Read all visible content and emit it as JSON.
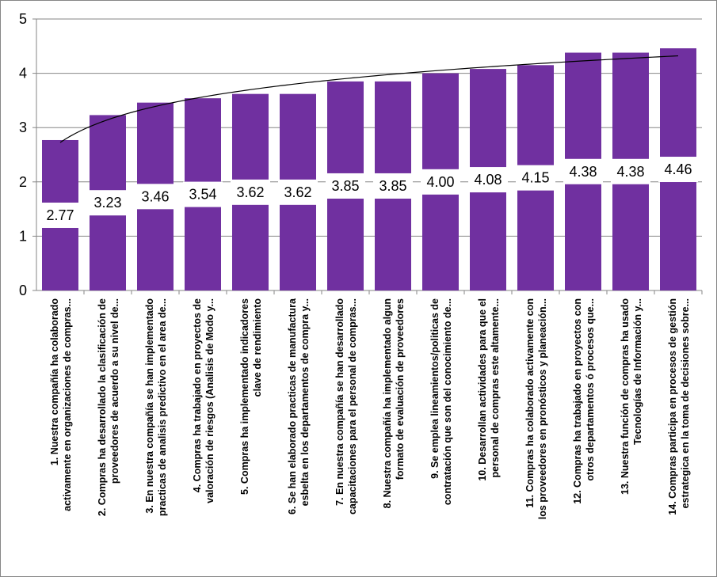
{
  "chart_data": {
    "type": "bar",
    "categories": [
      [
        "1. Nuestra compañía ha colaborado",
        "activamente en organizaciones de compras..."
      ],
      [
        "2. Compras ha desarrollado la clasificación de",
        "proveedores de acuerdo a su nivel de..."
      ],
      [
        "3. En nuestra compañía se han implementado",
        "practicas de analisis predictivo en el area de..."
      ],
      [
        "4. Compras ha trabajado en proyectos de",
        "valoración de riesgos (Analisis de Modo y..."
      ],
      [
        "5. Compras ha implementado indicadores",
        "clave de rendimiento"
      ],
      [
        "6. Se han elaborado practicas de manufactura",
        "esbelta en los departamentos de compra y..."
      ],
      [
        "7. En nuestra compañía se han desarrollado",
        "capacitaciones para el personal de compras..."
      ],
      [
        "8. Nuestra compañía ha implementado algun",
        "formato de evaluación de proveedores"
      ],
      [
        "9. Se emplea lineamientos/politicas de",
        "contratación que son del conocimiento de..."
      ],
      [
        "10. Desarrollan actividades para que el",
        "personal de compras este altamente..."
      ],
      [
        "11. Compras ha colaborado activamente con",
        "los proveedores en pronósticos y planeación..."
      ],
      [
        "12. Compras ha trabajado en proyectos con",
        "otros departamentos ó procesos que..."
      ],
      [
        "13. Nuestra función de compras ha usado",
        "Tecnologías de Información y..."
      ],
      [
        "14. Compras participa en procesos de gestión",
        "estrategica en la toma de decisiones sobre..."
      ]
    ],
    "values": [
      2.77,
      3.23,
      3.46,
      3.54,
      3.62,
      3.62,
      3.85,
      3.85,
      4.0,
      4.08,
      4.15,
      4.38,
      4.38,
      4.46
    ],
    "data_labels": [
      "2.77",
      "3.23",
      "3.46",
      "3.54",
      "3.62",
      "3.62",
      "3.85",
      "3.85",
      "4.00",
      "4.08",
      "4.15",
      "4.38",
      "4.38",
      "4.46"
    ],
    "y_ticks": [
      "0",
      "1",
      "2",
      "3",
      "4",
      "5"
    ],
    "ylim": [
      0,
      5
    ],
    "trendline": "logarithmic",
    "grid": true,
    "legend": "none",
    "bar_color": "#7030A0",
    "trend_color": "#000000",
    "grid_color": "#868686"
  }
}
